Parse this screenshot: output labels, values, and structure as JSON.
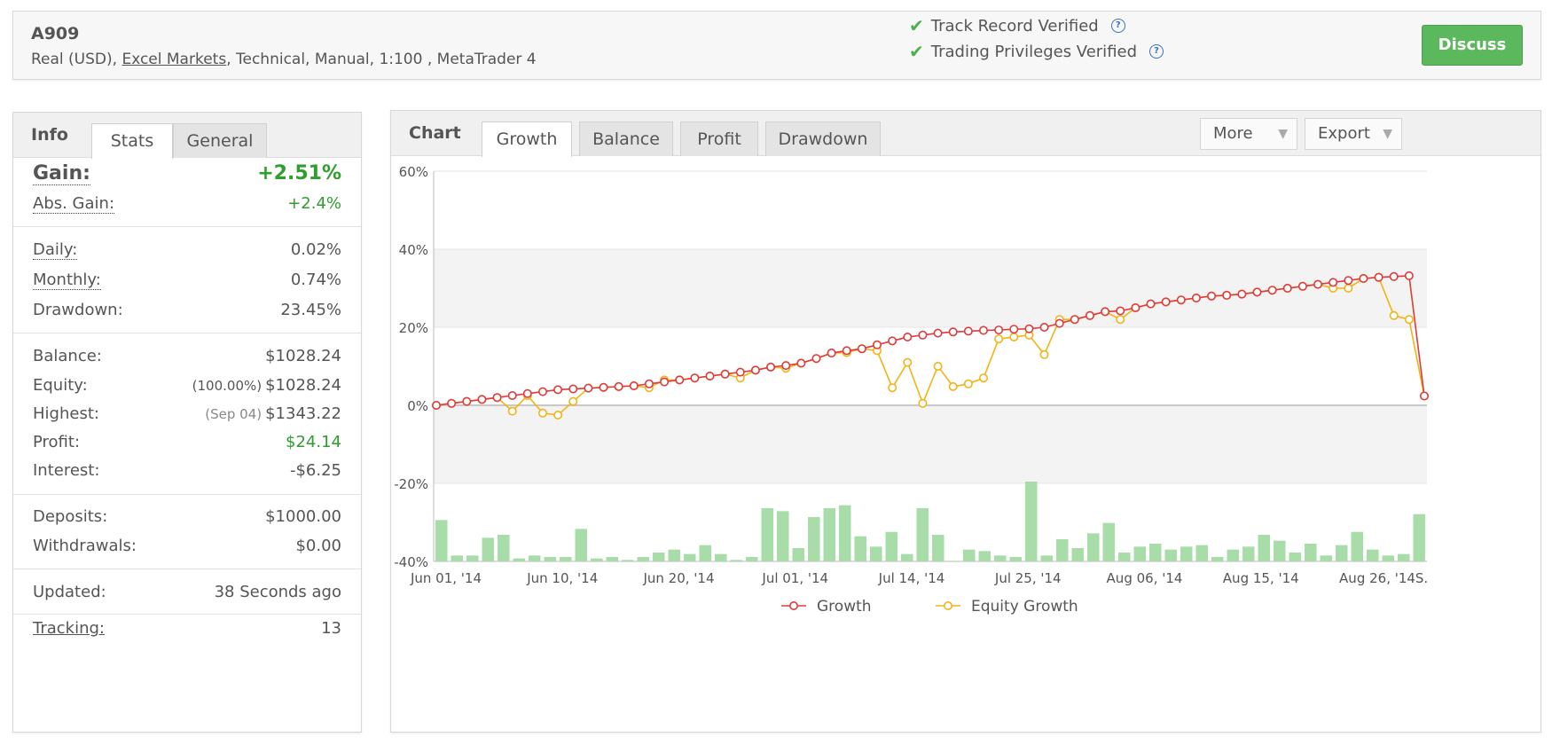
{
  "header": {
    "account_name": "A909",
    "desc_prefix": "Real (USD), ",
    "broker": "Excel Markets",
    "desc_suffix": ", Technical, Manual, 1:100 , MetaTrader 4",
    "verify_track": "Track Record Verified",
    "verify_trading": "Trading Privileges Verified",
    "help_glyph": "?",
    "check_glyph": "✔",
    "discuss_label": "Discuss"
  },
  "left_panel": {
    "title": "Info",
    "tabs": [
      "Stats",
      "General"
    ],
    "gain": {
      "label": "Gain:",
      "value": "+2.51%"
    },
    "abs_gain": {
      "label": "Abs. Gain:",
      "value": "+2.4%"
    },
    "daily": {
      "label": "Daily:",
      "value": "0.02%"
    },
    "monthly": {
      "label": "Monthly:",
      "value": "0.74%"
    },
    "drawdown": {
      "label": "Drawdown:",
      "value": "23.45%"
    },
    "balance": {
      "label": "Balance:",
      "value": "$1028.24"
    },
    "equity": {
      "label": "Equity:",
      "pre": "(100.00%)",
      "value": "$1028.24"
    },
    "highest": {
      "label": "Highest:",
      "pre": "(Sep 04)",
      "value": "$1343.22"
    },
    "profit": {
      "label": "Profit:",
      "value": "$24.14"
    },
    "interest": {
      "label": "Interest:",
      "value": "-$6.25"
    },
    "deposits": {
      "label": "Deposits:",
      "value": "$1000.00"
    },
    "withdrawals": {
      "label": "Withdrawals:",
      "value": "$0.00"
    },
    "updated": {
      "label": "Updated:",
      "value": "38 Seconds ago"
    },
    "tracking": {
      "label": "Tracking:",
      "value": "13"
    }
  },
  "right_panel": {
    "title": "Chart",
    "tabs": [
      "Growth",
      "Balance",
      "Profit",
      "Drawdown"
    ],
    "more_label": "More",
    "export_label": "Export",
    "arrow_glyph": "▼"
  },
  "colors": {
    "growth": "#e03a3a",
    "equity": "#f2b316",
    "bars": "#a8dca8",
    "accent_green": "#2e9e2e"
  },
  "chart_data": {
    "type": "line",
    "ylim": [
      -40,
      60
    ],
    "yticks": [
      "60%",
      "40%",
      "20%",
      "0%",
      "-20%",
      "-40%"
    ],
    "ytick_values": [
      60,
      40,
      20,
      0,
      -20,
      -40
    ],
    "xtick_labels": [
      "Jun 01, '14",
      "Jun 10, '14",
      "Jun 20, '14",
      "Jul 01, '14",
      "Jul 14, '14",
      "Jul 25, '14",
      "Aug 06, '14",
      "Aug 15, '14",
      "Aug 26, '14",
      "S."
    ],
    "series": [
      {
        "name": "Growth",
        "values": [
          0,
          0.5,
          1,
          1.5,
          2,
          2.5,
          3,
          3.5,
          4,
          4.2,
          4.4,
          4.6,
          4.8,
          5,
          5.5,
          6,
          6.5,
          7,
          7.5,
          8,
          8.5,
          9,
          9.8,
          10.2,
          10.8,
          12,
          13.4,
          14,
          14.5,
          15.5,
          16.5,
          17.5,
          18,
          18.5,
          18.8,
          19,
          19.2,
          19.3,
          19.5,
          19.6,
          20,
          21,
          22,
          23,
          24,
          24.2,
          25,
          26,
          26.5,
          27,
          27.5,
          28,
          28.2,
          28.5,
          29,
          29.5,
          30,
          30.5,
          31,
          31.5,
          32,
          32.5,
          32.8,
          33,
          33.2,
          2.4
        ]
      },
      {
        "name": "Equity Growth",
        "values": [
          0,
          0.5,
          1,
          1.5,
          2,
          -1.5,
          2.5,
          -2,
          -2.5,
          1,
          4.4,
          4.6,
          4.8,
          5,
          4.5,
          6.5,
          6.5,
          7,
          7.5,
          8,
          7,
          9,
          9.8,
          9.5,
          10.8,
          12,
          13.4,
          13.5,
          14.5,
          14,
          4.5,
          11,
          0.5,
          10,
          4.8,
          5.5,
          7,
          17,
          17.5,
          18,
          13,
          22,
          22,
          23,
          24,
          22,
          25,
          26,
          26.5,
          27,
          27.5,
          28,
          28.2,
          28.5,
          29,
          29.5,
          30,
          30.5,
          31,
          30,
          30,
          32.5,
          32.8,
          23,
          22,
          2.4
        ]
      }
    ],
    "bars": [
      14,
      2,
      2,
      8,
      9,
      1,
      2,
      1.5,
      1.5,
      11,
      1,
      1.5,
      0.5,
      1.5,
      3,
      4,
      2.5,
      5.5,
      2.5,
      0.5,
      1.5,
      18,
      17,
      4.5,
      15,
      18,
      19,
      8.5,
      5,
      10,
      2.5,
      18,
      9,
      0.2,
      4,
      3.5,
      2,
      1.5,
      27,
      2,
      7.5,
      4.5,
      9.5,
      13,
      3,
      5,
      6,
      4,
      5,
      5.5,
      1.5,
      4,
      5,
      9,
      7,
      3,
      6,
      2,
      5.5,
      10,
      4,
      2,
      2.5,
      16
    ]
  }
}
